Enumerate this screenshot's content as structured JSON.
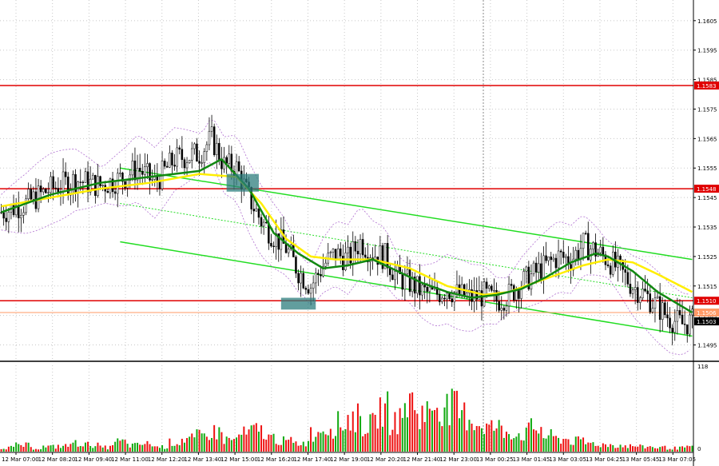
{
  "chart_data": {
    "type": "candlestick",
    "price_axis": {
      "ylim": [
        1.149,
        1.1612
      ],
      "ticks": [
        "1.1605",
        "1.1595",
        "1.1585",
        "1.1575",
        "1.1565",
        "1.1555",
        "1.1545",
        "1.1535",
        "1.1525",
        "1.1515",
        "1.1505",
        "1.1495"
      ]
    },
    "volume_axis": {
      "ylim": [
        0,
        118
      ],
      "ticks": [
        "118",
        "0"
      ]
    },
    "time_labels": [
      "12 Mar 07:00",
      "12 Mar 08:20",
      "12 Mar 09:40",
      "12 Mar 11:00",
      "12 Mar 12:20",
      "12 Mar 13:40",
      "12 Mar 15:00",
      "12 Mar 16:20",
      "12 Mar 17:40",
      "12 Mar 19:00",
      "12 Mar 20:20",
      "12 Mar 21:40",
      "12 Mar 23:00",
      "13 Mar 00:25",
      "13 Mar 01:45",
      "13 Mar 03:05",
      "13 Mar 04:25",
      "13 Mar 05:45",
      "13 Mar 07:05"
    ],
    "levels": [
      {
        "label": "1.1583",
        "value": 1.1583,
        "color": "#e00000"
      },
      {
        "label": "1.1548",
        "value": 1.1548,
        "color": "#e00000"
      },
      {
        "label": "1.1510",
        "value": 1.151,
        "color": "#e00000"
      },
      {
        "label": "1.1506",
        "value": 1.1506,
        "color": "#ff9966"
      }
    ],
    "current_price": {
      "label": "1.1503",
      "value": 1.1503
    },
    "close_path": [
      [
        0,
        1.154
      ],
      [
        10,
        1.1543
      ],
      [
        20,
        1.1548
      ],
      [
        30,
        1.1551
      ],
      [
        40,
        1.1549
      ],
      [
        50,
        1.1552
      ],
      [
        55,
        1.1555
      ],
      [
        62,
        1.155
      ],
      [
        70,
        1.1558
      ],
      [
        80,
        1.156
      ],
      [
        85,
        1.1565
      ],
      [
        90,
        1.1556
      ],
      [
        95,
        1.1555
      ],
      [
        100,
        1.1545
      ],
      [
        105,
        1.1537
      ],
      [
        110,
        1.1532
      ],
      [
        115,
        1.1528
      ],
      [
        120,
        1.152
      ],
      [
        125,
        1.1515
      ],
      [
        130,
        1.1522
      ],
      [
        135,
        1.1526
      ],
      [
        140,
        1.1524
      ],
      [
        145,
        1.153
      ],
      [
        150,
        1.1526
      ],
      [
        155,
        1.1525
      ],
      [
        160,
        1.1518
      ],
      [
        165,
        1.1516
      ],
      [
        170,
        1.1513
      ],
      [
        175,
        1.1512
      ],
      [
        180,
        1.1514
      ],
      [
        185,
        1.1512
      ],
      [
        190,
        1.1511
      ],
      [
        195,
        1.1512
      ],
      [
        200,
        1.151
      ],
      [
        205,
        1.1512
      ],
      [
        210,
        1.1516
      ],
      [
        215,
        1.1519
      ],
      [
        220,
        1.1522
      ],
      [
        225,
        1.1525
      ],
      [
        230,
        1.1524
      ],
      [
        235,
        1.1529
      ],
      [
        240,
        1.1527
      ],
      [
        245,
        1.1524
      ],
      [
        250,
        1.152
      ],
      [
        255,
        1.1515
      ],
      [
        260,
        1.1512
      ],
      [
        265,
        1.1508
      ],
      [
        270,
        1.1504
      ],
      [
        275,
        1.1502
      ],
      [
        279,
        1.1503
      ]
    ],
    "ema_green": [
      [
        0,
        1.154
      ],
      [
        20,
        1.1546
      ],
      [
        40,
        1.155
      ],
      [
        60,
        1.1552
      ],
      [
        80,
        1.1554
      ],
      [
        89,
        1.1558
      ],
      [
        100,
        1.1548
      ],
      [
        110,
        1.1533
      ],
      [
        120,
        1.1526
      ],
      [
        130,
        1.1521
      ],
      [
        140,
        1.1522
      ],
      [
        150,
        1.1524
      ],
      [
        160,
        1.152
      ],
      [
        170,
        1.1516
      ],
      [
        180,
        1.1513
      ],
      [
        190,
        1.1511
      ],
      [
        200,
        1.1512
      ],
      [
        210,
        1.1514
      ],
      [
        220,
        1.1518
      ],
      [
        230,
        1.1523
      ],
      [
        240,
        1.1526
      ],
      [
        245,
        1.1525
      ],
      [
        255,
        1.152
      ],
      [
        265,
        1.1513
      ],
      [
        275,
        1.1508
      ],
      [
        279,
        1.1506
      ]
    ],
    "sma_yellow": [
      [
        0,
        1.1542
      ],
      [
        20,
        1.1545
      ],
      [
        40,
        1.1548
      ],
      [
        60,
        1.155
      ],
      [
        80,
        1.1553
      ],
      [
        95,
        1.1552
      ],
      [
        105,
        1.1543
      ],
      [
        115,
        1.1531
      ],
      [
        125,
        1.1525
      ],
      [
        135,
        1.1524
      ],
      [
        150,
        1.1524
      ],
      [
        165,
        1.1521
      ],
      [
        180,
        1.1515
      ],
      [
        195,
        1.1512
      ],
      [
        205,
        1.1513
      ],
      [
        215,
        1.1516
      ],
      [
        225,
        1.1519
      ],
      [
        235,
        1.1522
      ],
      [
        245,
        1.1524
      ],
      [
        255,
        1.1523
      ],
      [
        265,
        1.1519
      ],
      [
        272,
        1.1516
      ],
      [
        279,
        1.1513
      ]
    ],
    "trend_channel": [
      {
        "from": [
          48,
          1.1555
        ],
        "to": [
          279,
          1.1524
        ]
      },
      {
        "from": [
          48,
          1.153
        ],
        "to": [
          279,
          1.1498
        ]
      },
      {
        "from": [
          48,
          1.1543
        ],
        "to": [
          279,
          1.1511
        ],
        "dashed": true
      }
    ],
    "signal_boxes": [
      {
        "x_from": 91,
        "x_to": 104,
        "y_from": 1.1547,
        "y_to": 1.1553
      },
      {
        "x_from": 113,
        "x_to": 127,
        "y_from": 1.1507,
        "y_to": 1.1511
      }
    ],
    "volume_pattern": [
      6,
      9,
      5,
      7,
      8,
      12,
      10,
      6,
      14,
      9,
      11,
      7,
      13,
      18,
      22,
      28,
      17,
      25,
      30,
      20,
      15,
      12,
      26,
      35,
      40,
      48,
      38,
      60,
      45,
      70,
      55,
      68,
      62,
      52,
      40,
      35,
      29,
      25,
      33,
      22,
      18,
      15,
      12,
      10,
      9,
      8,
      7,
      6,
      5,
      6
    ]
  }
}
